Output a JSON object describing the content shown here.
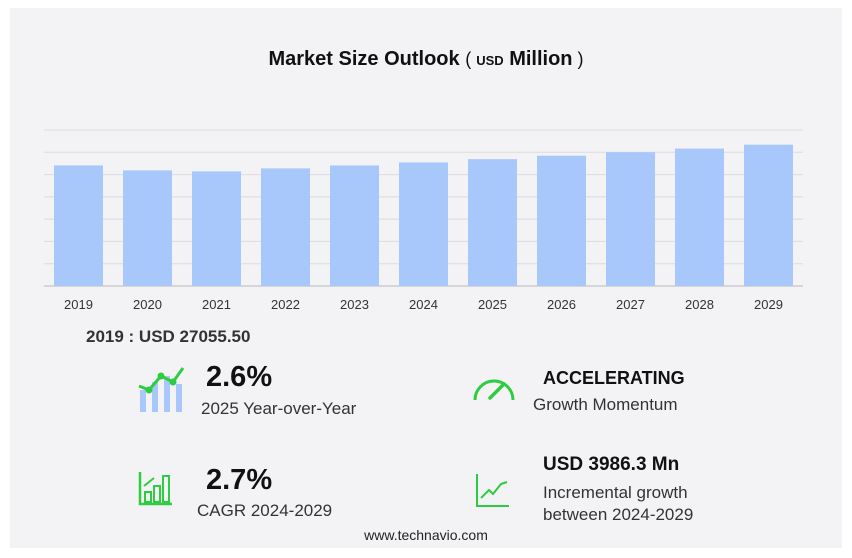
{
  "chart_data": {
    "type": "bar",
    "title": "Market Size Outlook",
    "unit_prefix": "USD",
    "unit": "Million",
    "categories": [
      "2019",
      "2020",
      "2021",
      "2022",
      "2023",
      "2024",
      "2025",
      "2026",
      "2027",
      "2028",
      "2029"
    ],
    "values": [
      27055.5,
      25940,
      25715,
      26385,
      27055,
      27730,
      28460,
      29230,
      30020,
      30830,
      31716
    ],
    "ylim": [
      0,
      35000
    ],
    "grid": true,
    "bar_color": "#a8c8fb"
  },
  "base_label": "2019 : USD  27055.50",
  "kpis": {
    "yoy_value": "2.6%",
    "yoy_label": "2025 Year-over-Year",
    "momentum_value": "ACCELERATING",
    "momentum_label": "Growth Momentum",
    "cagr_value": "2.7%",
    "cagr_label": "CAGR 2024-2029",
    "incr_value": "USD 3986.3 Mn",
    "incr_label1": "Incremental growth",
    "incr_label2": "between 2024-2029"
  },
  "footer": "www.technavio.com",
  "colors": {
    "green": "#2ecc40",
    "blue": "#a8c8fb"
  }
}
